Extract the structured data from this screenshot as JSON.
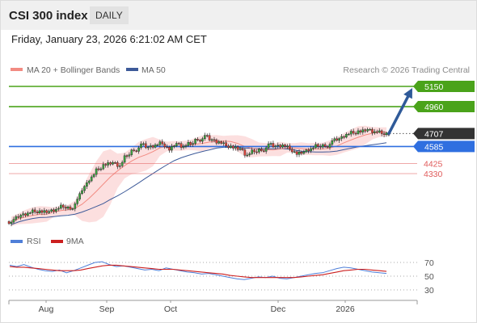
{
  "header": {
    "title": "CSI 300 index",
    "timeframe": "DAILY"
  },
  "datetime": "Friday, January 23, 2026 6:21:02 AM CET",
  "legend": {
    "items": [
      {
        "label": "MA 20 + Bollinger Bands",
        "color": "#f28b82"
      },
      {
        "label": "MA 50",
        "color": "#3d5a99"
      }
    ]
  },
  "credit": "Research © 2026 Trading Central",
  "colors": {
    "resistance": "#4aa31a",
    "support": "#2f6fe0",
    "minor_support": "#e05a5a",
    "current": "#333333",
    "arrow": "#2f5a99",
    "candle_up": "#3aa640",
    "candle_down": "#e0443a",
    "rsi": "#4f7fd8",
    "rsi_ma": "#cc1f1f",
    "bollinger_fill": "#fbd9d9"
  },
  "chart_data": [
    {
      "type": "candlestick",
      "title": "CSI 300 index",
      "timeframe": "DAILY",
      "x_ticks": [
        "Aug",
        "Sep",
        "Oct",
        "Dec",
        "2026"
      ],
      "series": [
        {
          "name": "MA 20 + Bollinger Bands"
        },
        {
          "name": "MA 50"
        }
      ],
      "approx_close_path": [
        3880,
        3930,
        3960,
        3980,
        3985,
        3960,
        3990,
        4020,
        4010,
        4070,
        4200,
        4300,
        4380,
        4430,
        4420,
        4400,
        4500,
        4560,
        4590,
        4570,
        4600,
        4620,
        4570,
        4600,
        4580,
        4610,
        4660,
        4670,
        4640,
        4630,
        4600,
        4590,
        4550,
        4500,
        4540,
        4560,
        4590,
        4580,
        4600,
        4570,
        4530,
        4520,
        4560,
        4590,
        4600,
        4620,
        4650,
        4700,
        4720,
        4740,
        4730,
        4720,
        4710,
        4707
      ],
      "price_levels": [
        {
          "value": 5150,
          "label": "5150",
          "kind": "resistance"
        },
        {
          "value": 4960,
          "label": "4960",
          "kind": "resistance"
        },
        {
          "value": 4707,
          "label": "4707",
          "kind": "current"
        },
        {
          "value": 4585,
          "label": "4585",
          "kind": "support"
        },
        {
          "value": 4425,
          "label": "4425",
          "kind": "minor_support"
        },
        {
          "value": 4330,
          "label": "4330",
          "kind": "minor_support"
        }
      ],
      "projection": {
        "from": 4707,
        "to": 5150
      }
    },
    {
      "type": "line",
      "title": "RSI",
      "series": [
        {
          "name": "RSI"
        },
        {
          "name": "9MA"
        }
      ],
      "y_ticks": [
        70,
        50,
        30
      ],
      "ylim": [
        20,
        80
      ],
      "rsi_values": [
        66,
        64,
        67,
        63,
        60,
        58,
        57,
        59,
        55,
        58,
        62,
        66,
        70,
        71,
        67,
        64,
        65,
        63,
        61,
        59,
        60,
        58,
        62,
        60,
        58,
        56,
        55,
        53,
        54,
        52,
        50,
        48,
        46,
        45,
        47,
        49,
        48,
        50,
        47,
        46,
        48,
        50,
        52,
        54,
        55,
        58,
        61,
        63,
        62,
        60,
        58,
        56,
        55,
        54
      ],
      "ma9_values": [
        64,
        63,
        63,
        62,
        61,
        60,
        59,
        58,
        58,
        58,
        59,
        61,
        63,
        65,
        66,
        66,
        65,
        64,
        63,
        62,
        61,
        60,
        60,
        60,
        59,
        58,
        57,
        56,
        55,
        54,
        53,
        51,
        50,
        49,
        48,
        48,
        48,
        48,
        48,
        48,
        48,
        49,
        50,
        51,
        52,
        54,
        56,
        58,
        59,
        60,
        60,
        59,
        58,
        57
      ]
    }
  ]
}
